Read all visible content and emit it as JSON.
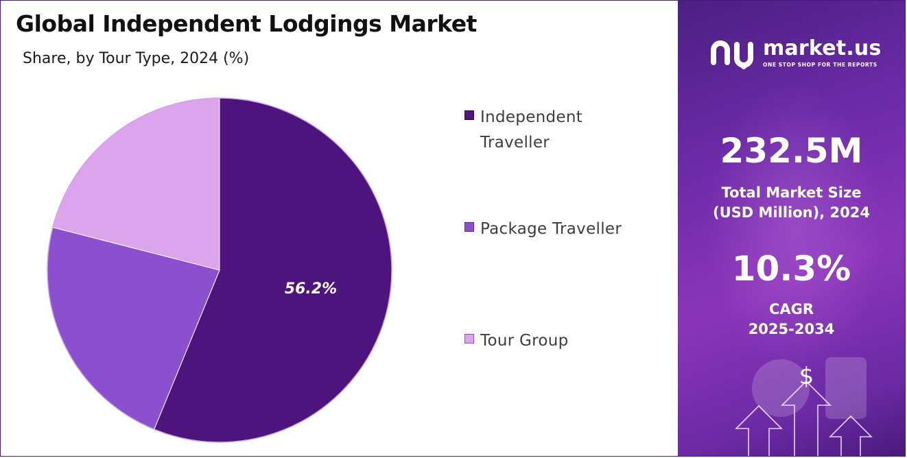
{
  "header": {
    "title": "Global Independent Lodgings Market",
    "subtitle": "Share, by Tour Type, 2024 (%)"
  },
  "chart_data": {
    "type": "pie",
    "title": "Global Independent Lodgings Market",
    "subtitle": "Share, by Tour Type, 2024 (%)",
    "categories": [
      "Independent Traveller",
      "Package Traveller",
      "Tour Group"
    ],
    "values": [
      56.2,
      22.8,
      21.0
    ],
    "colors": [
      "#4e147e",
      "#8b4fcf",
      "#dca4ec"
    ],
    "data_labels": [
      "56.2%",
      "",
      ""
    ],
    "legend_position": "right",
    "legend": [
      {
        "line1": "Independent",
        "line2": "Traveller",
        "color": "#4e147e"
      },
      {
        "line1": "Package Traveller",
        "line2": "",
        "color": "#8b4fcf"
      },
      {
        "line1": "Tour Group",
        "line2": "",
        "color": "#dca4ec"
      }
    ]
  },
  "sidebar": {
    "logo_name": "market.us",
    "logo_tagline": "ONE STOP SHOP FOR THE REPORTS",
    "logo_icon": "market-us-logo-icon",
    "market_size_value": "232.5M",
    "market_size_label_line1": "Total Market Size",
    "market_size_label_line2": "(USD Million), 2024",
    "cagr_value": "10.3%",
    "cagr_label_line1": "CAGR",
    "cagr_label_line2": "2025-2034",
    "dollar_symbol": "$",
    "background_color": "#6a2aa6"
  }
}
